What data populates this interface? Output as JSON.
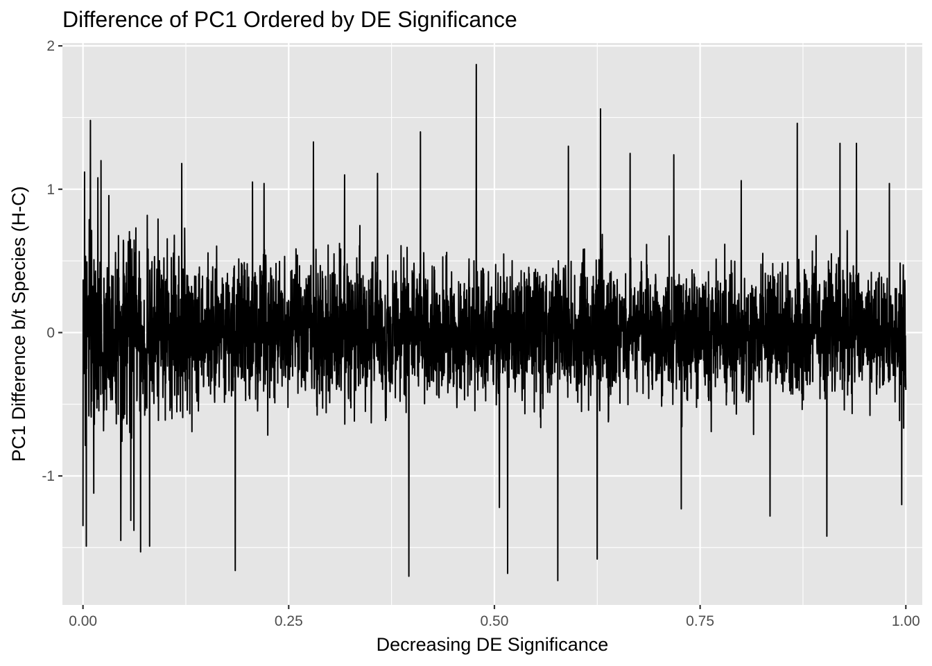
{
  "chart_data": {
    "type": "line",
    "title": "Difference of PC1 Ordered by DE Significance",
    "xlabel": "Decreasing DE Significance",
    "ylabel": "PC1 Difference b/t Species (H-C)",
    "xlim": [
      -0.025,
      1.02
    ],
    "ylim": [
      -1.9,
      2.02
    ],
    "x_ticks": [
      0.0,
      0.25,
      0.5,
      0.75,
      1.0
    ],
    "x_tick_labels": [
      "0.00",
      "0.25",
      "0.50",
      "0.75",
      "1.00"
    ],
    "y_ticks": [
      -1,
      0,
      1,
      2
    ],
    "y_tick_labels": [
      "-1",
      "0",
      "1",
      "2"
    ],
    "grid": true,
    "legend": "none",
    "panel_color": "#e5e5e5",
    "line_color": "#000000",
    "series": [
      {
        "points_note": "dense noisy series; representative extreme values estimated from the plot",
        "x": [
          0.0,
          0.002,
          0.004,
          0.009,
          0.013,
          0.018,
          0.022,
          0.046,
          0.058,
          0.062,
          0.07,
          0.081,
          0.12,
          0.185,
          0.206,
          0.22,
          0.28,
          0.318,
          0.358,
          0.396,
          0.41,
          0.478,
          0.506,
          0.516,
          0.577,
          0.59,
          0.625,
          0.629,
          0.665,
          0.718,
          0.727,
          0.8,
          0.835,
          0.868,
          0.904,
          0.92,
          0.94,
          0.98,
          0.995,
          1.0
        ],
        "values": [
          -1.35,
          1.12,
          -1.49,
          1.48,
          -1.12,
          1.08,
          1.2,
          -1.45,
          -1.31,
          -1.38,
          -1.53,
          -1.49,
          1.18,
          -1.66,
          1.05,
          1.04,
          1.33,
          1.1,
          1.11,
          -1.7,
          1.4,
          1.87,
          -1.22,
          -1.68,
          -1.73,
          1.3,
          -1.58,
          1.56,
          1.25,
          1.24,
          -1.23,
          1.06,
          -1.28,
          1.46,
          -1.42,
          1.32,
          1.32,
          1.04,
          -1.2,
          -0.4
        ]
      }
    ]
  }
}
